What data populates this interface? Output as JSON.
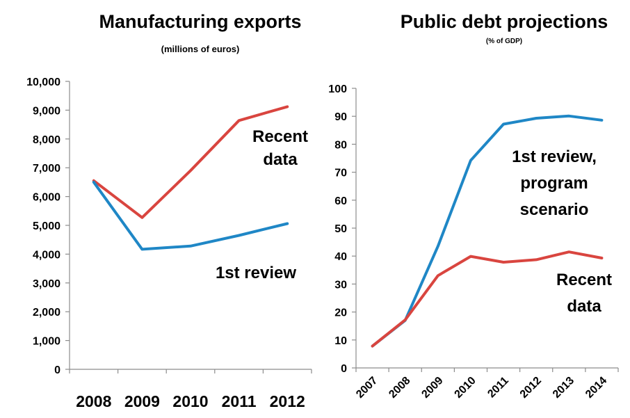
{
  "colors": {
    "recent": "#d9453f",
    "first_review": "#1f87c6",
    "axis": "#8c8c8c"
  },
  "chart_data": [
    {
      "type": "line",
      "title": "Manufacturing exports",
      "subtitle": "(millions of euros)",
      "categories": [
        "2008",
        "2009",
        "2010",
        "2011",
        "2012"
      ],
      "ylim": [
        0,
        10000
      ],
      "yticks": [
        0,
        1000,
        2000,
        3000,
        4000,
        5000,
        6000,
        7000,
        8000,
        9000,
        10000
      ],
      "ytick_labels": [
        "0",
        "1,000",
        "2,000",
        "3,000",
        "4,000",
        "5,000",
        "6,000",
        "7,000",
        "8,000",
        "9,000",
        "10,000"
      ],
      "grid": false,
      "series": [
        {
          "key": "recent",
          "values": [
            6550,
            5270,
            6900,
            8640,
            9120
          ]
        },
        {
          "key": "first_review",
          "values": [
            6500,
            4170,
            4280,
            4650,
            5060
          ]
        }
      ],
      "annotations": [
        {
          "key": "recent",
          "lines": [
            "Recent",
            "data"
          ]
        },
        {
          "key": "first_review",
          "lines": [
            "1st review"
          ]
        }
      ]
    },
    {
      "type": "line",
      "title": "Public debt projections",
      "subtitle": "(% of GDP)",
      "categories": [
        "2007",
        "2008",
        "2009",
        "2010",
        "2011",
        "2012",
        "2013",
        "2014"
      ],
      "ylim": [
        0,
        100
      ],
      "yticks": [
        0,
        10,
        20,
        30,
        40,
        50,
        60,
        70,
        80,
        90,
        100
      ],
      "ytick_labels": [
        "0",
        "10",
        "20",
        "30",
        "40",
        "50",
        "60",
        "70",
        "80",
        "90",
        "100"
      ],
      "grid": false,
      "series": [
        {
          "key": "first_review",
          "values": [
            7.8,
            17.0,
            43.5,
            74.2,
            87.2,
            89.3,
            90.1,
            88.6
          ]
        },
        {
          "key": "recent",
          "values": [
            7.8,
            17.2,
            33.0,
            39.9,
            37.8,
            38.7,
            41.5,
            39.3
          ]
        }
      ],
      "annotations": [
        {
          "key": "first_review",
          "lines": [
            "1st review,",
            "program",
            "scenario"
          ]
        },
        {
          "key": "recent",
          "lines": [
            "Recent",
            "data"
          ]
        }
      ]
    }
  ]
}
